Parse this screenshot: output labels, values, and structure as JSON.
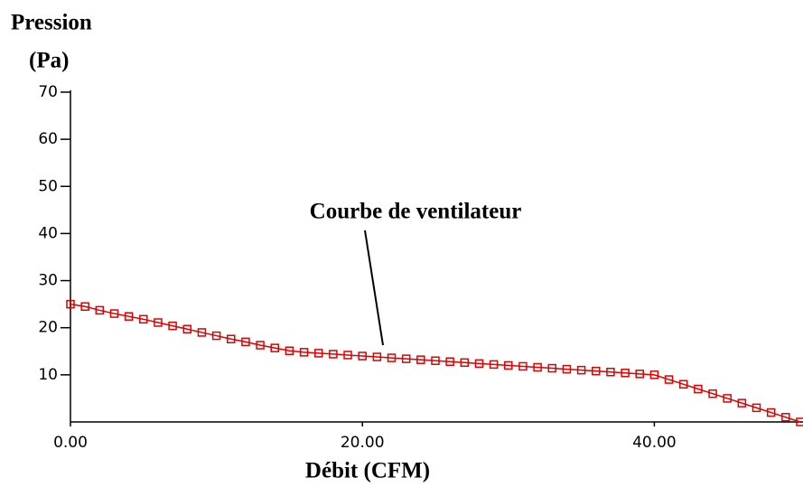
{
  "chart_data": {
    "type": "line",
    "ylabel": [
      "Pression",
      "(Pa)"
    ],
    "xlabel": "Débit (CFM)",
    "annotation": "Courbe de ventilateur",
    "xlim": [
      0,
      50
    ],
    "ylim": [
      0,
      70
    ],
    "xticks": [
      {
        "value": 0,
        "label": "0.00"
      },
      {
        "value": 20,
        "label": "20.00"
      },
      {
        "value": 40,
        "label": "40.00"
      }
    ],
    "yticks": [
      10,
      20,
      30,
      40,
      50,
      60,
      70
    ],
    "x": [
      0,
      1,
      2,
      3,
      4,
      5,
      6,
      7,
      8,
      9,
      10,
      11,
      12,
      13,
      14,
      15,
      16,
      17,
      18,
      19,
      20,
      21,
      22,
      23,
      24,
      25,
      26,
      27,
      28,
      29,
      30,
      31,
      32,
      33,
      34,
      35,
      36,
      37,
      38,
      39,
      40,
      41,
      42,
      43,
      44,
      45,
      46,
      47,
      48,
      49,
      50
    ],
    "series": [
      {
        "color": "#e00000",
        "values": [
          25,
          24.5,
          23.7,
          23,
          22.4,
          21.8,
          21.1,
          20.4,
          19.7,
          19,
          18.3,
          17.6,
          17,
          16.3,
          15.7,
          15.1,
          14.8,
          14.6,
          14.4,
          14.2,
          14,
          13.8,
          13.6,
          13.4,
          13.2,
          13,
          12.8,
          12.6,
          12.4,
          12.2,
          12,
          11.8,
          11.6,
          11.4,
          11.2,
          11,
          10.8,
          10.6,
          10.4,
          10.2,
          10,
          9,
          8,
          7,
          6,
          5,
          4,
          3,
          2,
          1,
          0
        ]
      }
    ]
  }
}
